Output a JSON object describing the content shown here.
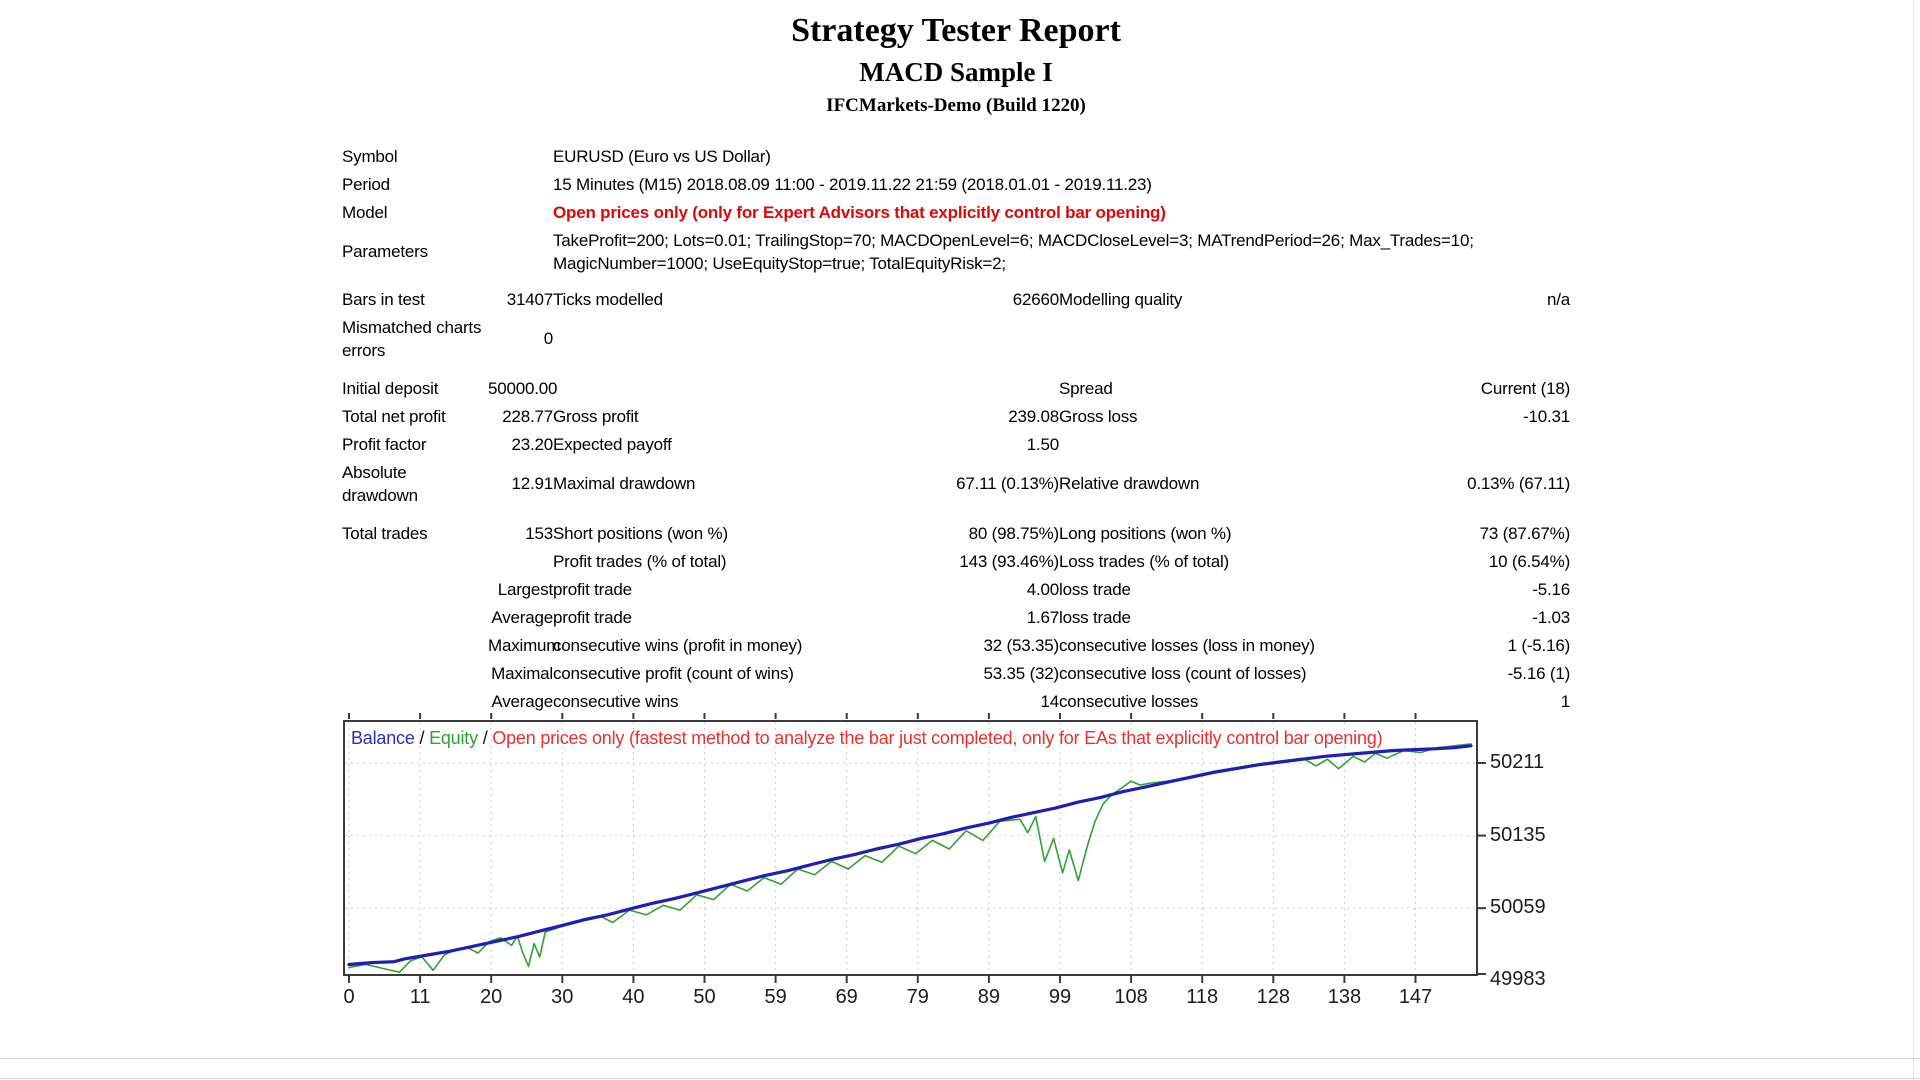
{
  "header": {
    "title": "Strategy Tester Report",
    "expert_name": "MACD Sample I",
    "server": "IFCMarkets-Demo (Build 1220)"
  },
  "info": {
    "symbol_label": "Symbol",
    "symbol_value": "EURUSD (Euro vs US Dollar)",
    "period_label": "Period",
    "period_value": "15 Minutes (M15) 2018.08.09 11:00 - 2019.11.22 21:59 (2018.01.01 - 2019.11.23)",
    "model_label": "Model",
    "model_value": "Open prices only (only for Expert Advisors that explicitly control bar opening)",
    "parameters_label": "Parameters",
    "parameters_value": "TakeProfit=200; Lots=0.01; TrailingStop=70; MACDOpenLevel=6; MACDCloseLevel=3; MATrendPeriod=26; Max_Trades=10; MagicNumber=1000; UseEquityStop=true; TotalEquityRisk=2;"
  },
  "stats": {
    "bars_in_test": {
      "label": "Bars in test",
      "value": "31407"
    },
    "ticks_modelled": {
      "label": "Ticks modelled",
      "value": "62660"
    },
    "modelling_quality": {
      "label": "Modelling quality",
      "value": "n/a"
    },
    "mismatched": {
      "label": "Mismatched charts errors",
      "value": "0"
    },
    "initial_deposit": {
      "label": "Initial deposit",
      "value": "50000.00"
    },
    "spread": {
      "label": "Spread",
      "value": "Current (18)"
    },
    "total_net_profit": {
      "label": "Total net profit",
      "value": "228.77"
    },
    "gross_profit": {
      "label": "Gross profit",
      "value": "239.08"
    },
    "gross_loss": {
      "label": "Gross loss",
      "value": "-10.31"
    },
    "profit_factor": {
      "label": "Profit factor",
      "value": "23.20"
    },
    "expected_payoff": {
      "label": "Expected payoff",
      "value": "1.50"
    },
    "absolute_drawdown": {
      "label": "Absolute drawdown",
      "value": "12.91"
    },
    "maximal_drawdown": {
      "label": "Maximal drawdown",
      "value": "67.11 (0.13%)"
    },
    "relative_drawdown": {
      "label": "Relative drawdown",
      "value": "0.13% (67.11)"
    },
    "total_trades": {
      "label": "Total trades",
      "value": "153"
    },
    "short_positions": {
      "label": "Short positions (won %)",
      "value": "80 (98.75%)"
    },
    "long_positions": {
      "label": "Long positions (won %)",
      "value": "73 (87.67%)"
    },
    "profit_trades": {
      "label": "Profit trades (% of total)",
      "value": "143 (93.46%)"
    },
    "loss_trades": {
      "label": "Loss trades (% of total)",
      "value": "10 (6.54%)"
    },
    "largest": {
      "qualifier": "Largest",
      "profit_label": "profit trade",
      "profit_value": "4.00",
      "loss_label": "loss trade",
      "loss_value": "-5.16"
    },
    "average_trade": {
      "qualifier": "Average",
      "profit_label": "profit trade",
      "profit_value": "1.67",
      "loss_label": "loss trade",
      "loss_value": "-1.03"
    },
    "maximum": {
      "qualifier": "Maximum",
      "wins_label": "consecutive wins (profit in money)",
      "wins_value": "32 (53.35)",
      "losses_label": "consecutive losses (loss in money)",
      "losses_value": "1 (-5.16)"
    },
    "maximal": {
      "qualifier": "Maximal",
      "wins_label": "consecutive profit (count of wins)",
      "wins_value": "53.35 (32)",
      "losses_label": "consecutive loss (count of losses)",
      "losses_value": "-5.16 (1)"
    },
    "average_consecutive": {
      "qualifier": "Average",
      "wins_label": "consecutive wins",
      "wins_value": "14",
      "losses_label": "consecutive losses",
      "losses_value": "1"
    }
  },
  "chart_data": {
    "type": "line",
    "legend": {
      "balance_label": "Balance",
      "separator": " / ",
      "equity_label": "Equity",
      "note": "Open prices only (fastest method to analyze the bar just completed, only for EAs that explicitly control bar opening)"
    },
    "x_tick_labels": [
      "0",
      "11",
      "20",
      "30",
      "40",
      "50",
      "59",
      "69",
      "79",
      "89",
      "99",
      "108",
      "118",
      "128",
      "138",
      "147"
    ],
    "y_ticks": [
      50211,
      50135,
      50059,
      49983
    ],
    "y_axis": {
      "top_value": 50256,
      "bottom_value": 49988
    },
    "grid": true,
    "legend_position": "top-left-inside",
    "colors": {
      "balance": "#1f1fb4",
      "equity": "#30a330",
      "grid": "#c9c9c9",
      "border": "#3a3a3a"
    },
    "series": [
      {
        "name": "Equity",
        "color": "#30a330",
        "width": 1.6,
        "points": [
          [
            0,
            49997
          ],
          [
            0.015,
            50000
          ],
          [
            0.03,
            49996
          ],
          [
            0.045,
            49992
          ],
          [
            0.055,
            50004
          ],
          [
            0.065,
            50008
          ],
          [
            0.075,
            49994
          ],
          [
            0.085,
            50010
          ],
          [
            0.095,
            50016
          ],
          [
            0.105,
            50018
          ],
          [
            0.115,
            50012
          ],
          [
            0.125,
            50024
          ],
          [
            0.135,
            50028
          ],
          [
            0.145,
            50020
          ],
          [
            0.15,
            50030
          ],
          [
            0.155,
            50012
          ],
          [
            0.16,
            49998
          ],
          [
            0.165,
            50022
          ],
          [
            0.17,
            50008
          ],
          [
            0.175,
            50034
          ],
          [
            0.19,
            50040
          ],
          [
            0.21,
            50046
          ],
          [
            0.225,
            50050
          ],
          [
            0.235,
            50044
          ],
          [
            0.25,
            50057
          ],
          [
            0.265,
            50052
          ],
          [
            0.28,
            50062
          ],
          [
            0.295,
            50057
          ],
          [
            0.31,
            50073
          ],
          [
            0.325,
            50068
          ],
          [
            0.34,
            50084
          ],
          [
            0.355,
            50077
          ],
          [
            0.37,
            50091
          ],
          [
            0.385,
            50084
          ],
          [
            0.4,
            50100
          ],
          [
            0.415,
            50094
          ],
          [
            0.43,
            50108
          ],
          [
            0.445,
            50100
          ],
          [
            0.46,
            50114
          ],
          [
            0.475,
            50107
          ],
          [
            0.49,
            50124
          ],
          [
            0.505,
            50116
          ],
          [
            0.52,
            50130
          ],
          [
            0.535,
            50121
          ],
          [
            0.55,
            50140
          ],
          [
            0.565,
            50130
          ],
          [
            0.58,
            50150
          ],
          [
            0.598,
            50152
          ],
          [
            0.605,
            50138
          ],
          [
            0.612,
            50155
          ],
          [
            0.62,
            50108
          ],
          [
            0.628,
            50132
          ],
          [
            0.636,
            50096
          ],
          [
            0.642,
            50120
          ],
          [
            0.65,
            50088
          ],
          [
            0.658,
            50124
          ],
          [
            0.665,
            50150
          ],
          [
            0.672,
            50168
          ],
          [
            0.68,
            50178
          ],
          [
            0.69,
            50186
          ],
          [
            0.697,
            50192
          ],
          [
            0.705,
            50188
          ],
          [
            0.715,
            50190
          ],
          [
            0.73,
            50192
          ],
          [
            0.75,
            50197
          ],
          [
            0.77,
            50202
          ],
          [
            0.79,
            50206
          ],
          [
            0.81,
            50210
          ],
          [
            0.83,
            50213
          ],
          [
            0.85,
            50216
          ],
          [
            0.862,
            50208
          ],
          [
            0.872,
            50215
          ],
          [
            0.882,
            50205
          ],
          [
            0.895,
            50218
          ],
          [
            0.905,
            50212
          ],
          [
            0.915,
            50221
          ],
          [
            0.925,
            50216
          ],
          [
            0.94,
            50224
          ],
          [
            0.955,
            50222
          ],
          [
            0.97,
            50227
          ],
          [
            0.985,
            50229
          ],
          [
            1,
            50231
          ]
        ]
      },
      {
        "name": "Balance",
        "color": "#1f1fb4",
        "width": 3.2,
        "points": [
          [
            0,
            50000
          ],
          [
            0.02,
            50002
          ],
          [
            0.04,
            50003
          ],
          [
            0.05,
            50006
          ],
          [
            0.07,
            50010
          ],
          [
            0.09,
            50014
          ],
          [
            0.11,
            50019
          ],
          [
            0.13,
            50024
          ],
          [
            0.15,
            50029
          ],
          [
            0.17,
            50035
          ],
          [
            0.19,
            50041
          ],
          [
            0.21,
            50047
          ],
          [
            0.23,
            50052
          ],
          [
            0.25,
            50058
          ],
          [
            0.27,
            50064
          ],
          [
            0.29,
            50069
          ],
          [
            0.31,
            50075
          ],
          [
            0.33,
            50081
          ],
          [
            0.35,
            50087
          ],
          [
            0.37,
            50093
          ],
          [
            0.39,
            50098
          ],
          [
            0.41,
            50104
          ],
          [
            0.43,
            50110
          ],
          [
            0.45,
            50115
          ],
          [
            0.47,
            50121
          ],
          [
            0.49,
            50126
          ],
          [
            0.51,
            50132
          ],
          [
            0.53,
            50137
          ],
          [
            0.55,
            50143
          ],
          [
            0.57,
            50148
          ],
          [
            0.59,
            50154
          ],
          [
            0.61,
            50159
          ],
          [
            0.63,
            50164
          ],
          [
            0.65,
            50170
          ],
          [
            0.67,
            50175
          ],
          [
            0.69,
            50181
          ],
          [
            0.71,
            50186
          ],
          [
            0.73,
            50191
          ],
          [
            0.75,
            50196
          ],
          [
            0.77,
            50201
          ],
          [
            0.79,
            50205
          ],
          [
            0.81,
            50209
          ],
          [
            0.83,
            50212
          ],
          [
            0.85,
            50215
          ],
          [
            0.87,
            50218
          ],
          [
            0.89,
            50220
          ],
          [
            0.91,
            50222
          ],
          [
            0.93,
            50224
          ],
          [
            0.95,
            50225
          ],
          [
            0.97,
            50226
          ],
          [
            0.985,
            50227
          ],
          [
            1,
            50229
          ]
        ]
      }
    ]
  }
}
